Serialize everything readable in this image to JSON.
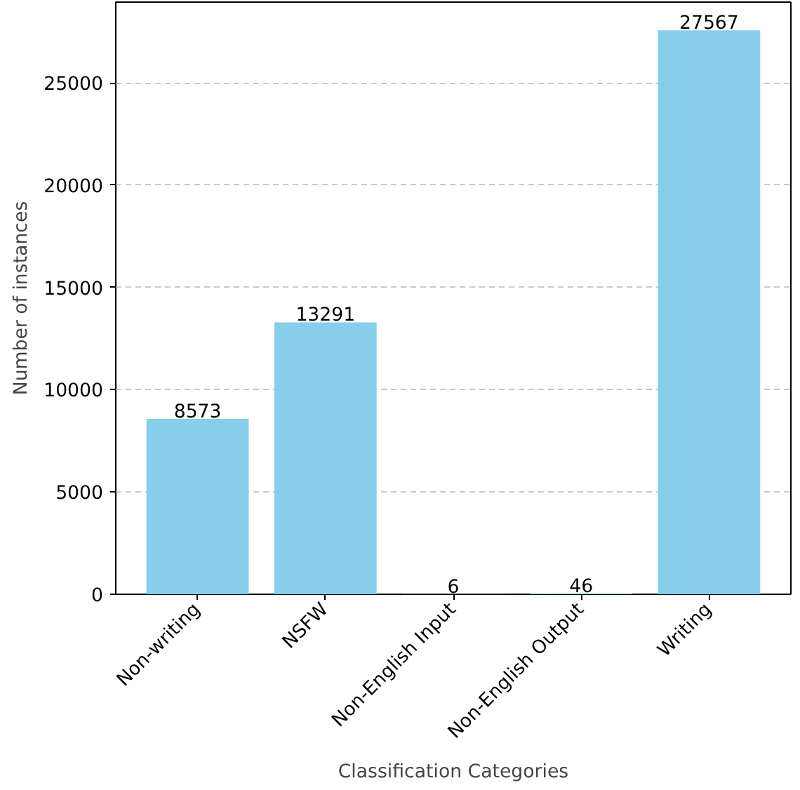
{
  "chart_data": {
    "type": "bar",
    "xlabel": "Classification Categories",
    "ylabel": "Number of instances",
    "categories": [
      "Non-writing",
      "NSFW",
      "Non-English Input",
      "Non-English Output",
      "Writing"
    ],
    "values": [
      8573,
      13291,
      6,
      46,
      27567
    ],
    "color": "#87ceeb",
    "ylim": [
      0,
      28945
    ],
    "yticks": [
      0,
      5000,
      10000,
      15000,
      20000,
      25000
    ],
    "grid": "y",
    "data_labels": true
  }
}
